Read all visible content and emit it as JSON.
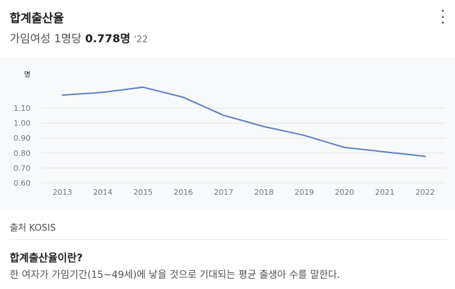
{
  "header": {
    "title": "합계출산율",
    "more_icon": "more-vert-icon"
  },
  "summary": {
    "label": "가임여성 1명당",
    "value": "0.778명",
    "year": "'22"
  },
  "chart_data": {
    "type": "line",
    "title": "",
    "xlabel": "",
    "ylabel": "명",
    "categories": [
      "2013",
      "2014",
      "2015",
      "2016",
      "2017",
      "2018",
      "2019",
      "2020",
      "2021",
      "2022"
    ],
    "series": [
      {
        "values": [
          1.187,
          1.205,
          1.24,
          1.172,
          1.052,
          0.977,
          0.918,
          0.837,
          0.808,
          0.778
        ],
        "color": "#5b7ec9"
      }
    ],
    "yticks": [
      "1.10",
      "1.00",
      "0.90",
      "0.80",
      "0.70",
      "0.60"
    ],
    "ylim": [
      0.6,
      1.35
    ],
    "grid": true,
    "legend": "none"
  },
  "source": "출처 KOSIS",
  "definition": {
    "title": "합계출산율이란?",
    "text": "한 여자가 가임기간(15~49세)에 낳을 것으로 기대되는 평균 출생아 수를 말한다."
  }
}
